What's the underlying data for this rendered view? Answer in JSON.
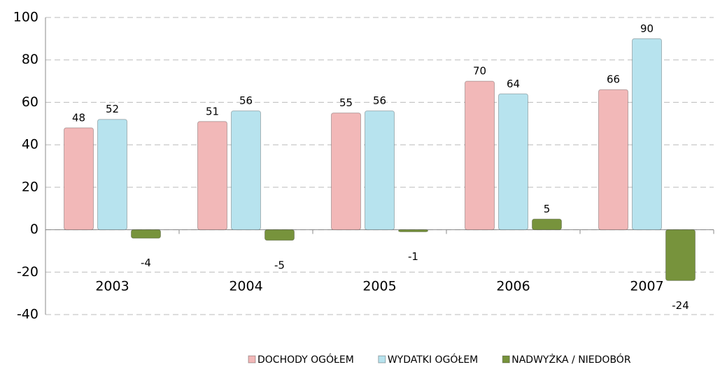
{
  "chart_data": {
    "type": "bar",
    "categories": [
      "2003",
      "2004",
      "2005",
      "2006",
      "2007"
    ],
    "series": [
      {
        "name": "DOCHODY OGÓŁEM",
        "color": "#f2b8b8",
        "values": [
          48,
          51,
          55,
          70,
          66
        ]
      },
      {
        "name": "WYDATKI OGÓŁEM",
        "color": "#b7e3ee",
        "values": [
          52,
          56,
          56,
          64,
          90
        ]
      },
      {
        "name": "NADWYŻKA / NIEDOBÓR",
        "color": "#77933c",
        "values": [
          -4,
          -5,
          -1,
          5,
          -24
        ]
      }
    ],
    "ylim": [
      -40,
      100
    ],
    "yticks": [
      -40,
      -20,
      0,
      20,
      40,
      60,
      80,
      100
    ],
    "grid": true
  }
}
